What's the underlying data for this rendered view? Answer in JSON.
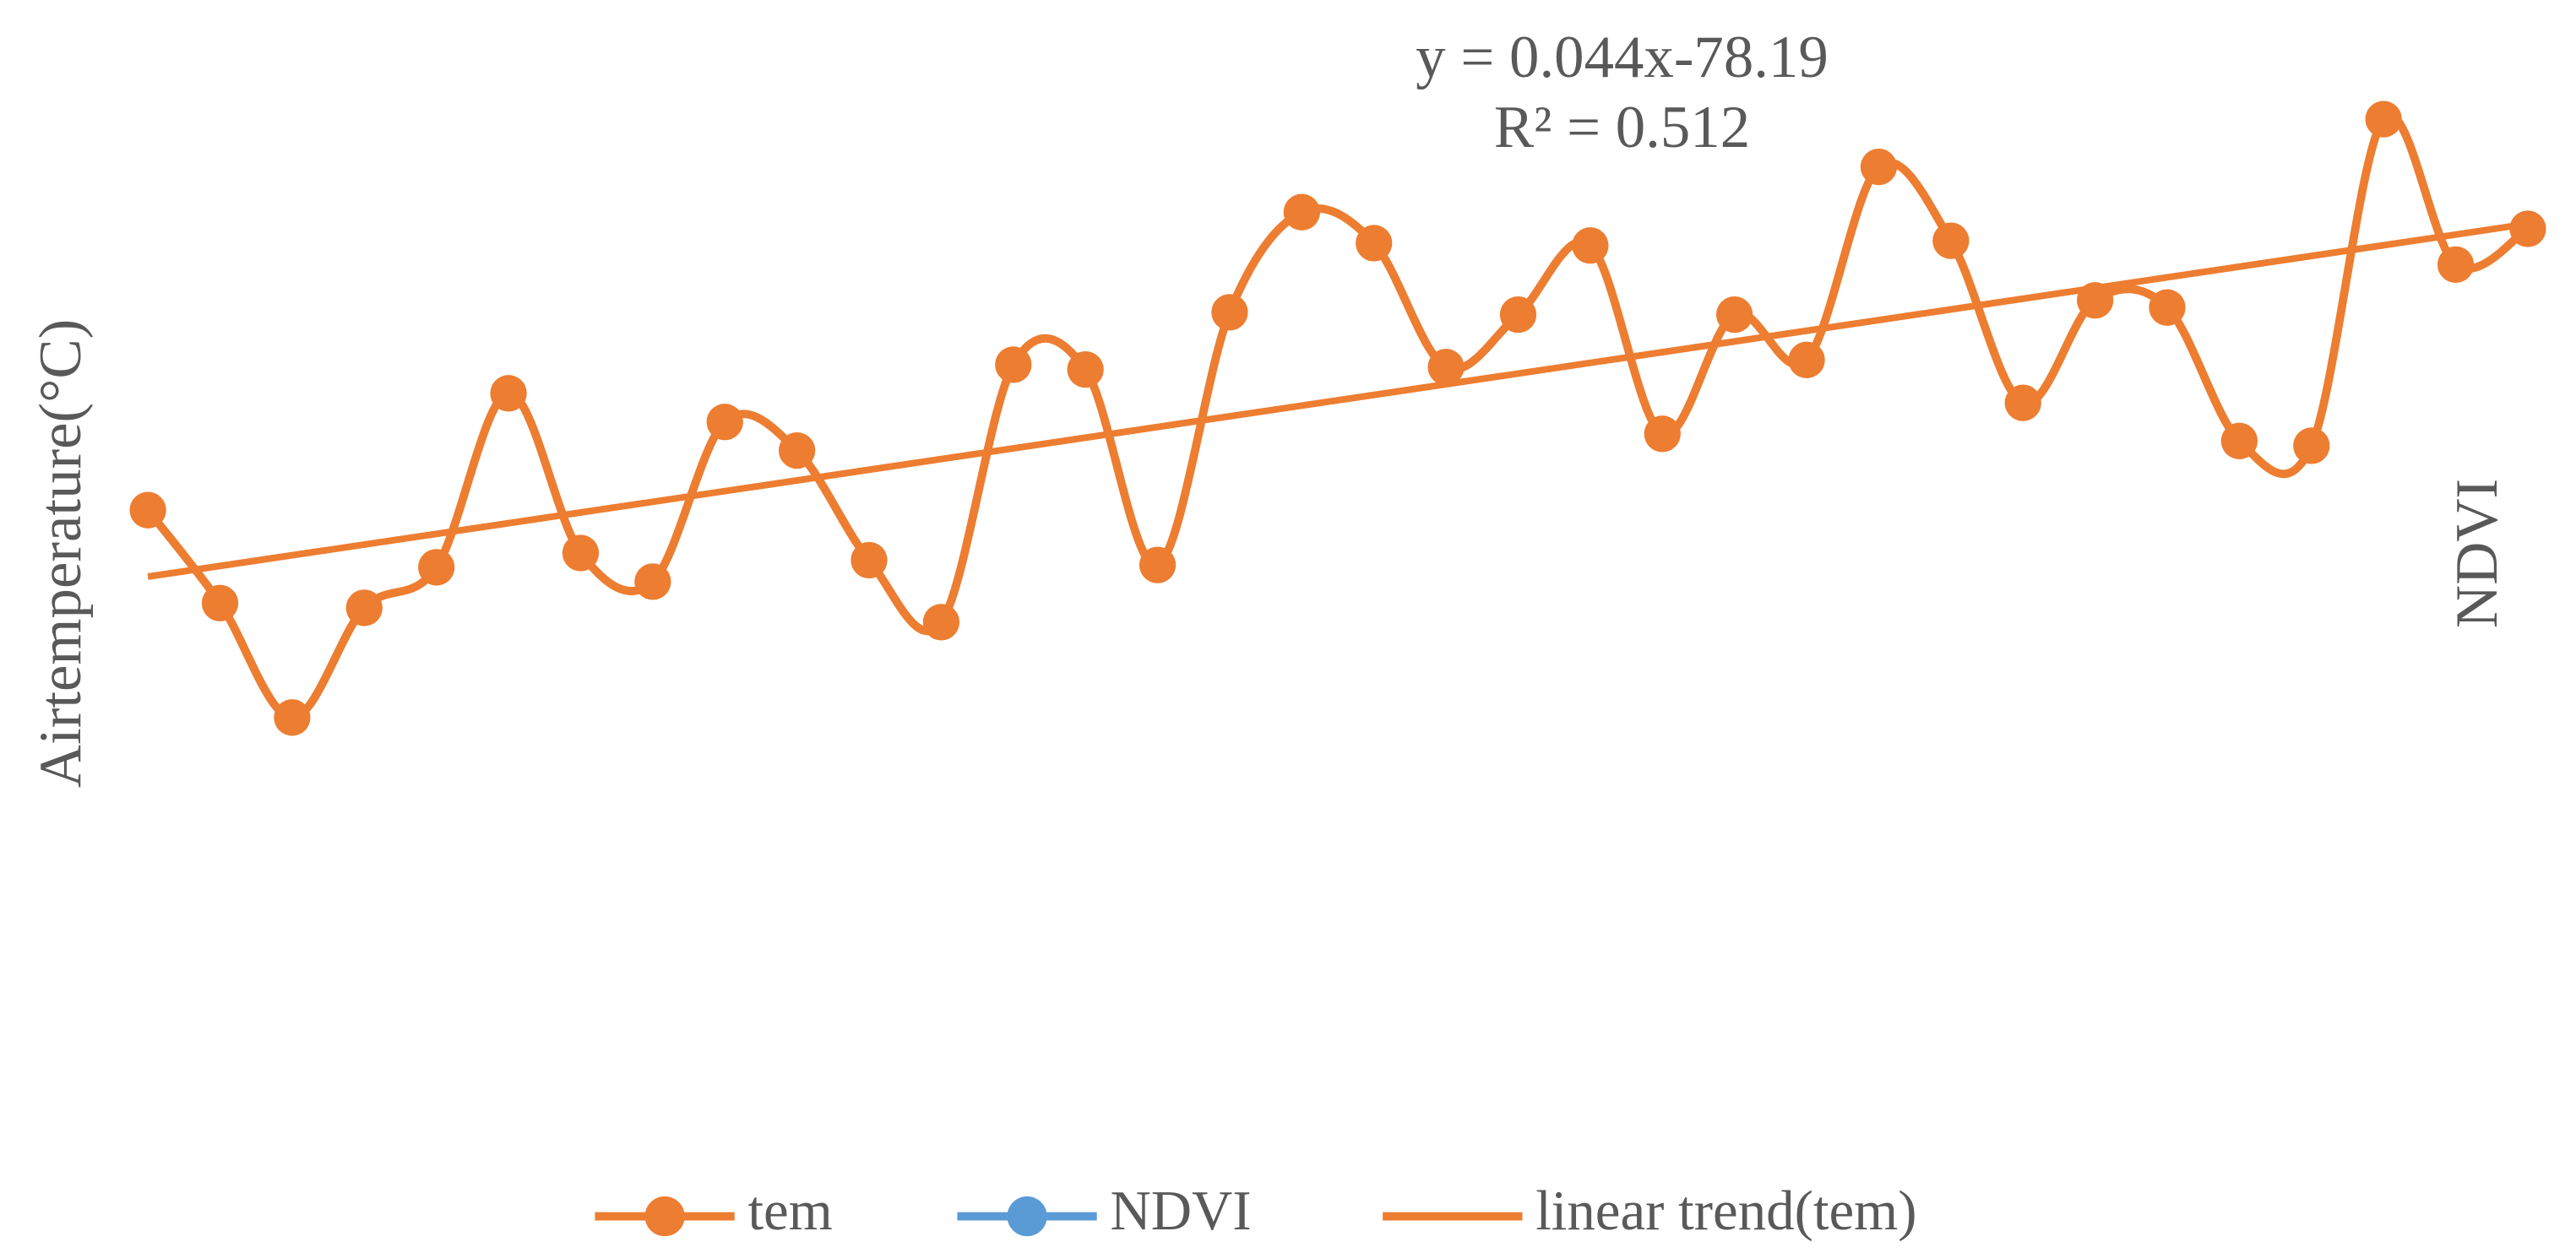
{
  "chart_data": {
    "type": "line",
    "y_label": "Airtemperature(°C)",
    "y2_label": "NDVI",
    "annotations": [
      "y = 0.044x-78.19",
      "R² = 0.512"
    ],
    "ylim": [
      6.7,
      11.3
    ],
    "trendline": {
      "name": "linear trend(tem)",
      "color": "#ed7d31"
    },
    "series": [
      {
        "name": "tem",
        "color": "#ed7d31",
        "smooth": true,
        "values": [
          9.3,
          8.91,
          8.43,
          8.89,
          9.06,
          9.79,
          9.12,
          9.0,
          9.67,
          9.55,
          9.09,
          8.83,
          9.91,
          9.89,
          9.07,
          10.13,
          10.55,
          10.42,
          9.9,
          10.12,
          10.41,
          9.62,
          10.12,
          9.93,
          10.74,
          10.43,
          9.75,
          10.18,
          10.15,
          9.59,
          9.57,
          10.94,
          10.33,
          10.48
        ]
      },
      {
        "name": "NDVI",
        "color": "#5b9bd5",
        "axis": "y2",
        "values": [
          null,
          null,
          null,
          null,
          null,
          null,
          null,
          null,
          null,
          null,
          null,
          null,
          null,
          null,
          null,
          null,
          null,
          null,
          null,
          null,
          null,
          null,
          null,
          null,
          null,
          null,
          null,
          null,
          null,
          null,
          null,
          null,
          null,
          null
        ]
      }
    ]
  }
}
